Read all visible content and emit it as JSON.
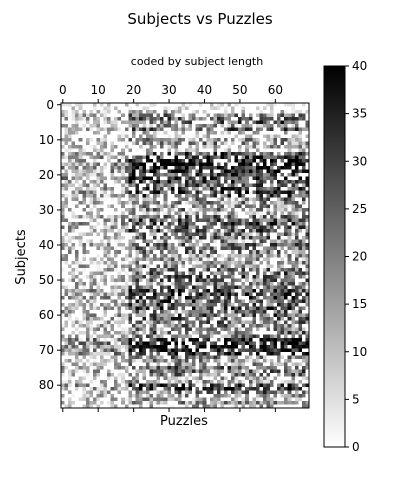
{
  "chart_data": {
    "type": "heatmap",
    "title": "Subjects vs Puzzles",
    "subtitle": "coded by subject length",
    "xlabel": "Puzzles",
    "ylabel": "Subjects",
    "n_rows": 87,
    "n_cols": 70,
    "xlim": [
      -0.5,
      69.5
    ],
    "ylim": [
      86.5,
      -0.5
    ],
    "x_ticks": [
      0,
      10,
      20,
      30,
      40,
      50,
      60
    ],
    "x_tick_labels": [
      "0",
      "10",
      "20",
      "30",
      "40",
      "50",
      "60"
    ],
    "x_tick_position": "top",
    "y_ticks": [
      0,
      10,
      20,
      30,
      40,
      50,
      60,
      70,
      80
    ],
    "y_tick_labels": [
      "0",
      "10",
      "20",
      "30",
      "40",
      "50",
      "60",
      "70",
      "80"
    ],
    "colormap": "gray_r",
    "colorbar": {
      "min": 0,
      "max": 40,
      "ticks": [
        0,
        5,
        10,
        15,
        20,
        25,
        30,
        35,
        40
      ],
      "tick_labels": [
        "0",
        "5",
        "10",
        "15",
        "20",
        "25",
        "30",
        "35",
        "40"
      ]
    },
    "colors": {
      "low": "#ffffff",
      "high": "#000000"
    },
    "row_intensity": [
      0.0,
      0.0,
      0.15,
      0.5,
      0.55,
      0.65,
      0.35,
      0.6,
      0.2,
      0.1,
      0.4,
      0.45,
      0.3,
      0.15,
      0.7,
      0.75,
      0.85,
      0.9,
      0.8,
      0.85,
      0.7,
      0.8,
      0.75,
      0.6,
      0.7,
      0.75,
      0.65,
      0.5,
      0.45,
      0.4,
      0.45,
      0.3,
      0.55,
      0.65,
      0.7,
      0.6,
      0.65,
      0.5,
      0.55,
      0.45,
      0.6,
      0.5,
      0.55,
      0.4,
      0.45,
      0.35,
      0.5,
      0.55,
      0.6,
      0.65,
      0.55,
      0.5,
      0.6,
      0.7,
      0.75,
      0.7,
      0.65,
      0.6,
      0.7,
      0.55,
      0.65,
      0.6,
      0.55,
      0.5,
      0.45,
      0.55,
      0.5,
      0.9,
      0.95,
      0.95,
      0.9,
      0.85,
      0.5,
      0.4,
      0.35,
      0.6,
      0.55,
      0.5,
      0.3,
      0.4,
      0.75,
      0.8,
      0.55,
      0.4,
      0.35,
      0.4,
      0.3
    ]
  }
}
